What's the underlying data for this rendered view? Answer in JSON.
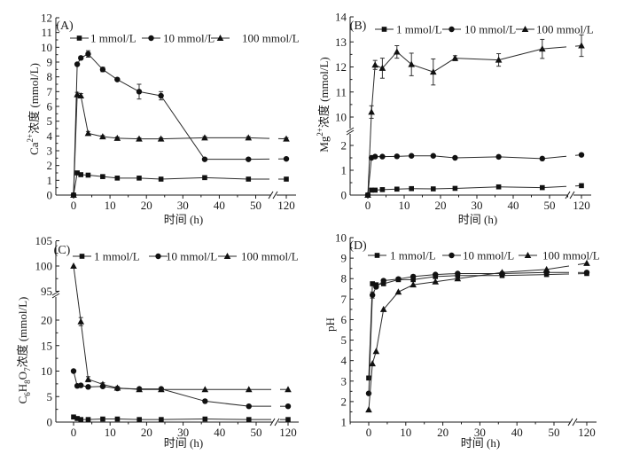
{
  "figure": {
    "panel_count": 4
  },
  "chart_data": [
    {
      "type": "line",
      "panel_label": "(A)",
      "ylabel": [
        {
          "t": "Ca"
        },
        {
          "t": "2+",
          "sup": true
        },
        {
          "t": "浓度 (mmol/L)"
        }
      ],
      "xlabel": "时间 (h)",
      "x": [
        0,
        1,
        2,
        4,
        8,
        12,
        18,
        24,
        36,
        48,
        120
      ],
      "xticks": [
        0,
        10,
        20,
        30,
        40,
        50,
        120
      ],
      "xlim": [
        -5,
        120
      ],
      "x_break": [
        55,
        115
      ],
      "yticks": [
        0,
        1,
        2,
        3,
        4,
        5,
        6,
        7,
        8,
        9,
        10,
        11,
        12
      ],
      "ylim": [
        0,
        12
      ],
      "y_break": null,
      "legend_position": "top",
      "series": [
        {
          "name": "1 mmol/L",
          "marker": "square",
          "values": [
            0,
            1.5,
            1.38,
            1.35,
            1.25,
            1.15,
            1.15,
            1.08,
            1.18,
            1.08,
            1.08
          ],
          "err": [
            0,
            0,
            0,
            0,
            0,
            0,
            0,
            0,
            0,
            0,
            0
          ]
        },
        {
          "name": "10 mmol/L",
          "marker": "circle",
          "values": [
            0,
            8.85,
            9.28,
            9.55,
            8.5,
            7.82,
            7.0,
            6.72,
            2.42,
            2.42,
            2.45
          ],
          "err": [
            0,
            0,
            0.1,
            0.22,
            0.15,
            0,
            0.5,
            0.28,
            0,
            0,
            0
          ]
        },
        {
          "name": "100 mmol/L",
          "marker": "triangle",
          "values": [
            0,
            6.8,
            6.72,
            4.18,
            3.95,
            3.85,
            3.8,
            3.8,
            3.88,
            3.88,
            3.8
          ],
          "err": [
            0,
            0.15,
            0.15,
            0.12,
            0.08,
            0.08,
            0.08,
            0.08,
            0.08,
            0.08,
            0.08
          ]
        }
      ]
    },
    {
      "type": "line",
      "panel_label": "(B)",
      "ylabel": [
        {
          "t": "Mg"
        },
        {
          "t": "2+",
          "sup": true
        },
        {
          "t": "浓度 (mmol/L)"
        }
      ],
      "xlabel": "时间 (h)",
      "x": [
        0,
        1,
        2,
        4,
        8,
        12,
        18,
        24,
        36,
        48,
        120
      ],
      "xticks": [
        0,
        10,
        20,
        30,
        40,
        50,
        120
      ],
      "xlim": [
        -5,
        120
      ],
      "x_break": [
        55,
        115
      ],
      "yticks": [
        0,
        1,
        2,
        10,
        11,
        12,
        13,
        14
      ],
      "ylim": [
        0,
        14
      ],
      "y_break": [
        2.4,
        9.5
      ],
      "legend_position": "top",
      "series": [
        {
          "name": "1 mmol/L",
          "marker": "square",
          "values": [
            0,
            0.2,
            0.2,
            0.22,
            0.24,
            0.26,
            0.25,
            0.27,
            0.33,
            0.3,
            0.38
          ],
          "err": [
            0,
            0,
            0,
            0,
            0,
            0,
            0,
            0,
            0,
            0,
            0.05
          ]
        },
        {
          "name": "10 mmol/L",
          "marker": "circle",
          "values": [
            0,
            1.5,
            1.55,
            1.55,
            1.56,
            1.58,
            1.58,
            1.5,
            1.54,
            1.47,
            1.62
          ],
          "err": [
            0,
            0,
            0,
            0,
            0,
            0,
            0,
            0,
            0,
            0,
            0
          ]
        },
        {
          "name": "100 mmol/L",
          "marker": "triangle",
          "values": [
            0,
            10.2,
            12.08,
            11.95,
            12.6,
            12.1,
            11.8,
            12.35,
            12.28,
            12.72,
            12.85
          ],
          "err": [
            0,
            0.25,
            0.18,
            0.4,
            0.25,
            0.45,
            0.52,
            0.1,
            0.25,
            0.38,
            0.43
          ]
        }
      ]
    },
    {
      "type": "line",
      "panel_label": "(C)",
      "ylabel": [
        {
          "t": "C"
        },
        {
          "t": "6",
          "sub": true
        },
        {
          "t": "H"
        },
        {
          "t": "8",
          "sub": true
        },
        {
          "t": "O"
        },
        {
          "t": "7",
          "sub": true
        },
        {
          "t": "浓度 (mmol/L)"
        }
      ],
      "xlabel": "时间 (h)",
      "x": [
        0,
        1,
        2,
        4,
        8,
        12,
        18,
        24,
        36,
        48,
        120
      ],
      "xticks": [
        0,
        10,
        20,
        30,
        40,
        50,
        120
      ],
      "xlim": [
        -5,
        120
      ],
      "x_break": [
        55,
        115
      ],
      "yticks": [
        0,
        5,
        10,
        15,
        20,
        95,
        100,
        105
      ],
      "ylim": [
        0,
        105
      ],
      "y_break": [
        25,
        95
      ],
      "legend_position": "top",
      "series": [
        {
          "name": "1 mmol/L",
          "marker": "square",
          "values": [
            1.0,
            0.7,
            0.5,
            0.5,
            0.6,
            0.6,
            0.5,
            0.5,
            0.6,
            0.5,
            0.5
          ],
          "err": [
            0,
            0,
            0,
            0,
            0,
            0,
            0,
            0,
            0,
            0,
            0
          ]
        },
        {
          "name": "10 mmol/L",
          "marker": "circle",
          "values": [
            10,
            7.1,
            7.2,
            6.9,
            7.0,
            6.6,
            6.5,
            6.5,
            4.1,
            3.1,
            3.1
          ],
          "err": [
            0,
            0,
            0,
            0,
            0.3,
            0,
            0,
            0,
            0,
            0,
            0
          ]
        },
        {
          "name": "100 mmol/L",
          "marker": "triangle",
          "values": [
            100,
            null,
            19.7,
            8.4,
            7.4,
            6.7,
            6.4,
            6.4,
            6.4,
            6.4,
            6.4
          ],
          "err": [
            0,
            0,
            0.8,
            0.5,
            0.3,
            0.2,
            0.2,
            0.2,
            0,
            0,
            0
          ]
        }
      ]
    },
    {
      "type": "line",
      "panel_label": "(D)",
      "ylabel": [
        {
          "t": "pH"
        }
      ],
      "xlabel": "时间 (h)",
      "x": [
        0,
        1,
        2,
        4,
        8,
        12,
        18,
        24,
        36,
        48,
        120
      ],
      "xticks": [
        0,
        10,
        20,
        30,
        40,
        50,
        120
      ],
      "xlim": [
        -5,
        120
      ],
      "x_break": [
        55,
        115
      ],
      "yticks": [
        1,
        2,
        3,
        4,
        5,
        6,
        7,
        8,
        9,
        10
      ],
      "ylim": [
        1,
        10
      ],
      "y_break": null,
      "legend_position": "top",
      "series": [
        {
          "name": "1 mmol/L",
          "marker": "square",
          "values": [
            3.15,
            7.75,
            7.7,
            7.75,
            7.95,
            7.95,
            8.1,
            8.15,
            8.15,
            8.2,
            8.25
          ],
          "err": [
            0,
            0,
            0,
            0,
            0,
            0,
            0,
            0,
            0,
            0,
            0
          ]
        },
        {
          "name": "10 mmol/L",
          "marker": "circle",
          "values": [
            2.4,
            7.2,
            7.6,
            7.9,
            7.98,
            8.1,
            8.2,
            8.25,
            8.25,
            8.3,
            8.3
          ],
          "err": [
            0,
            0.15,
            0,
            0,
            0,
            0,
            0,
            0,
            0,
            0,
            0
          ]
        },
        {
          "name": "100 mmol/L",
          "marker": "triangle",
          "values": [
            1.6,
            3.85,
            4.45,
            6.5,
            7.35,
            7.7,
            7.85,
            8.0,
            8.3,
            8.45,
            8.75
          ],
          "err": [
            0,
            0,
            0,
            0,
            0,
            0,
            0,
            0,
            0,
            0,
            0
          ]
        }
      ]
    }
  ]
}
